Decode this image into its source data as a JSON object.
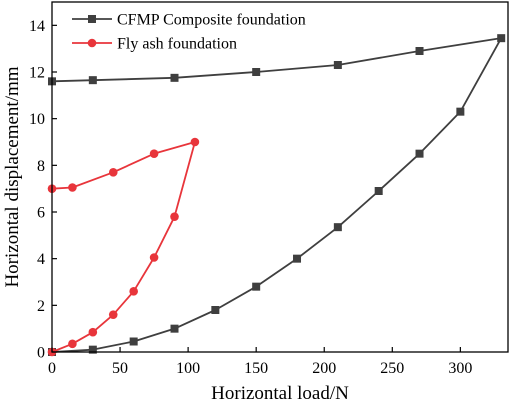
{
  "chart_data": {
    "type": "line",
    "xlabel": "Horizontal load/N",
    "ylabel": "Horizontal displacement/mm",
    "xlim": [
      0,
      335
    ],
    "ylim": [
      0,
      15
    ],
    "xticks": [
      0,
      50,
      100,
      150,
      200,
      250,
      300
    ],
    "yticks": [
      0,
      2,
      4,
      6,
      8,
      10,
      12,
      14
    ],
    "grid": false,
    "legend_position": "top-left",
    "series": [
      {
        "name": "CFMP Composite foundation",
        "color": "#3f3f3f",
        "marker": "square",
        "x": [
          0,
          30,
          60,
          90,
          120,
          150,
          180,
          210,
          240,
          270,
          300,
          330,
          270,
          210,
          150,
          90,
          30,
          0
        ],
        "y": [
          0,
          0.1,
          0.45,
          1.0,
          1.8,
          2.8,
          4.0,
          5.35,
          6.9,
          8.5,
          10.3,
          13.45,
          12.9,
          12.3,
          12.0,
          11.75,
          11.65,
          11.6
        ]
      },
      {
        "name": "Fly ash foundation",
        "color": "#e8353b",
        "marker": "circle",
        "x": [
          0,
          15,
          30,
          45,
          60,
          75,
          90,
          105,
          75,
          45,
          15,
          0
        ],
        "y": [
          0,
          0.35,
          0.85,
          1.6,
          2.6,
          4.05,
          5.8,
          9.0,
          8.5,
          7.7,
          7.05,
          7.0
        ]
      }
    ]
  }
}
